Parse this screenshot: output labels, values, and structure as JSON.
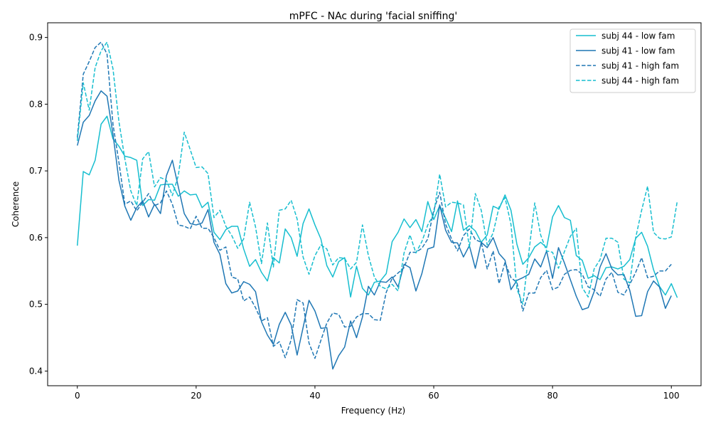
{
  "chart_data": {
    "type": "line",
    "title": "mPFC - NAc during 'facial sniffing'",
    "xlabel": "Frequency (Hz)",
    "ylabel": "Coherence",
    "xlim": [
      -5,
      105
    ],
    "ylim": [
      0.378,
      0.922
    ],
    "xticks": [
      0,
      20,
      40,
      60,
      80,
      100
    ],
    "yticks": [
      0.4,
      0.5,
      0.6,
      0.7,
      0.8,
      0.9
    ],
    "ytick_labels": [
      "0.4",
      "0.5",
      "0.6",
      "0.7",
      "0.8",
      "0.9"
    ],
    "grid": false,
    "legend": "top-right",
    "series": [
      {
        "name": "subj 44 - low fam",
        "color": "#17becf",
        "linestyle": "solid",
        "values": [
          0.588,
          0.699,
          0.694,
          0.716,
          0.77,
          0.782,
          0.748,
          0.737,
          0.722,
          0.72,
          0.716,
          0.648,
          0.657,
          0.656,
          0.679,
          0.68,
          0.68,
          0.662,
          0.67,
          0.664,
          0.665,
          0.645,
          0.653,
          0.608,
          0.597,
          0.612,
          0.617,
          0.617,
          0.583,
          0.557,
          0.567,
          0.548,
          0.535,
          0.57,
          0.562,
          0.613,
          0.6,
          0.572,
          0.621,
          0.643,
          0.619,
          0.598,
          0.558,
          0.541,
          0.564,
          0.57,
          0.511,
          0.557,
          0.524,
          0.514,
          0.533,
          0.535,
          0.546,
          0.594,
          0.608,
          0.628,
          0.615,
          0.627,
          0.609,
          0.654,
          0.627,
          0.648,
          0.629,
          0.609,
          0.655,
          0.611,
          0.618,
          0.61,
          0.593,
          0.604,
          0.647,
          0.643,
          0.664,
          0.641,
          0.59,
          0.56,
          0.57,
          0.586,
          0.593,
          0.585,
          0.631,
          0.648,
          0.63,
          0.626,
          0.573,
          0.566,
          0.539,
          0.543,
          0.537,
          0.555,
          0.556,
          0.553,
          0.557,
          0.567,
          0.599,
          0.608,
          0.587,
          0.552,
          0.527,
          0.514,
          0.531,
          0.51
        ]
      },
      {
        "name": "subj 41 - low fam",
        "color": "#1f77b4",
        "linestyle": "solid",
        "values": [
          0.738,
          0.773,
          0.783,
          0.805,
          0.82,
          0.812,
          0.755,
          0.686,
          0.647,
          0.626,
          0.645,
          0.655,
          0.631,
          0.65,
          0.636,
          0.693,
          0.716,
          0.676,
          0.636,
          0.621,
          0.619,
          0.622,
          0.642,
          0.593,
          0.575,
          0.531,
          0.517,
          0.52,
          0.534,
          0.53,
          0.519,
          0.474,
          0.454,
          0.44,
          0.47,
          0.488,
          0.469,
          0.424,
          0.465,
          0.506,
          0.49,
          0.464,
          0.465,
          0.403,
          0.423,
          0.436,
          0.475,
          0.45,
          0.481,
          0.527,
          0.514,
          0.534,
          0.533,
          0.541,
          0.526,
          0.56,
          0.555,
          0.52,
          0.546,
          0.583,
          0.586,
          0.649,
          0.611,
          0.593,
          0.592,
          0.571,
          0.588,
          0.554,
          0.593,
          0.585,
          0.6,
          0.576,
          0.566,
          0.522,
          0.536,
          0.54,
          0.545,
          0.568,
          0.556,
          0.58,
          0.539,
          0.585,
          0.562,
          0.537,
          0.512,
          0.492,
          0.495,
          0.519,
          0.556,
          0.576,
          0.553,
          0.544,
          0.545,
          0.521,
          0.482,
          0.483,
          0.519,
          0.535,
          0.526,
          0.494,
          0.513
        ]
      },
      {
        "name": "subj 41 - high fam",
        "color": "#1f77b4",
        "linestyle": "dashed",
        "values": [
          0.75,
          0.845,
          0.864,
          0.885,
          0.893,
          0.875,
          0.77,
          0.713,
          0.65,
          0.655,
          0.64,
          0.653,
          0.666,
          0.648,
          0.652,
          0.67,
          0.65,
          0.619,
          0.617,
          0.613,
          0.632,
          0.614,
          0.614,
          0.6,
          0.581,
          0.586,
          0.541,
          0.538,
          0.505,
          0.511,
          0.495,
          0.475,
          0.48,
          0.437,
          0.444,
          0.42,
          0.447,
          0.507,
          0.502,
          0.442,
          0.419,
          0.446,
          0.472,
          0.487,
          0.485,
          0.466,
          0.467,
          0.481,
          0.486,
          0.486,
          0.477,
          0.476,
          0.518,
          0.539,
          0.547,
          0.555,
          0.578,
          0.578,
          0.584,
          0.598,
          0.641,
          0.668,
          0.62,
          0.598,
          0.58,
          0.603,
          0.613,
          0.597,
          0.593,
          0.553,
          0.58,
          0.531,
          0.563,
          0.54,
          0.533,
          0.49,
          0.517,
          0.517,
          0.54,
          0.551,
          0.522,
          0.526,
          0.545,
          0.551,
          0.552,
          0.545,
          0.526,
          0.522,
          0.512,
          0.538,
          0.548,
          0.518,
          0.514,
          0.53,
          0.548,
          0.57,
          0.54,
          0.542,
          0.55,
          0.55,
          0.56
        ]
      },
      {
        "name": "subj 44 - high fam",
        "color": "#17becf",
        "linestyle": "dashed",
        "values": [
          0.745,
          0.832,
          0.791,
          0.855,
          0.88,
          0.893,
          0.853,
          0.774,
          0.718,
          0.67,
          0.648,
          0.718,
          0.729,
          0.676,
          0.69,
          0.686,
          0.663,
          0.693,
          0.758,
          0.732,
          0.705,
          0.706,
          0.696,
          0.63,
          0.641,
          0.617,
          0.603,
          0.584,
          0.598,
          0.653,
          0.616,
          0.561,
          0.622,
          0.556,
          0.641,
          0.643,
          0.656,
          0.628,
          0.571,
          0.545,
          0.573,
          0.589,
          0.583,
          0.559,
          0.57,
          0.569,
          0.553,
          0.563,
          0.619,
          0.573,
          0.541,
          0.527,
          0.523,
          0.53,
          0.52,
          0.577,
          0.604,
          0.577,
          0.594,
          0.619,
          0.635,
          0.695,
          0.646,
          0.653,
          0.652,
          0.649,
          0.585,
          0.666,
          0.641,
          0.589,
          0.607,
          0.646,
          0.66,
          0.62,
          0.523,
          0.5,
          0.577,
          0.652,
          0.604,
          0.58,
          0.578,
          0.554,
          0.579,
          0.602,
          0.614,
          0.525,
          0.511,
          0.553,
          0.567,
          0.599,
          0.599,
          0.593,
          0.538,
          0.532,
          0.6,
          0.641,
          0.677,
          0.608,
          0.599,
          0.598,
          0.601,
          0.655
        ]
      }
    ]
  }
}
